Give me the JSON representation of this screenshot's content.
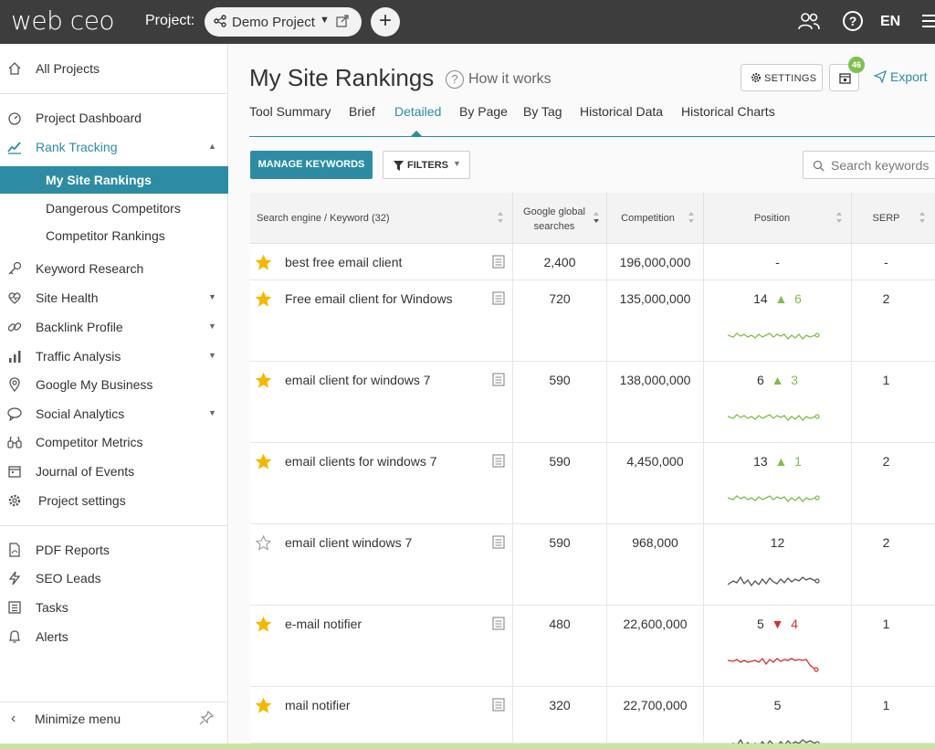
{
  "header": {
    "logo": "web ceo",
    "project_label": "Project:",
    "project_name": "Demo Project",
    "add_icon": "plus-icon",
    "lang": "EN"
  },
  "sidebar": {
    "items": [
      {
        "label": "All Projects",
        "icon": "home-icon"
      },
      {
        "label": "Project Dashboard",
        "icon": "dashboard-icon"
      },
      {
        "label": "Rank Tracking",
        "icon": "chart-line-icon"
      },
      {
        "label": "Keyword Research",
        "icon": "key-icon"
      },
      {
        "label": "Site Health",
        "icon": "heart-pulse-icon"
      },
      {
        "label": "Backlink Profile",
        "icon": "link-icon"
      },
      {
        "label": "Traffic Analysis",
        "icon": "bar-chart-icon"
      },
      {
        "label": "Google My Business",
        "icon": "map-pin-icon"
      },
      {
        "label": "Social Analytics",
        "icon": "speech-bubble-icon"
      },
      {
        "label": "Competitor Metrics",
        "icon": "binoculars-icon"
      },
      {
        "label": "Journal of Events",
        "icon": "calendar-icon"
      },
      {
        "label": "Project settings",
        "icon": "gear-icon"
      },
      {
        "label": "PDF Reports",
        "icon": "pdf-icon"
      },
      {
        "label": "SEO Leads",
        "icon": "lightning-icon"
      },
      {
        "label": "Tasks",
        "icon": "tasks-icon"
      },
      {
        "label": "Alerts",
        "icon": "bell-icon"
      }
    ],
    "subitems": [
      {
        "label": "My Site Rankings"
      },
      {
        "label": "Dangerous Competitors"
      },
      {
        "label": "Competitor Rankings"
      }
    ],
    "minimize_label": "Minimize menu"
  },
  "main": {
    "title": "My Site Rankings",
    "how_it_works": "How it works",
    "settings_label": "SETTINGS",
    "badge_count": "46",
    "export_label": "Export",
    "tabs": [
      {
        "label": "Tool Summary"
      },
      {
        "label": "Brief"
      },
      {
        "label": "Detailed"
      },
      {
        "label": "By Page"
      },
      {
        "label": "By Tag"
      },
      {
        "label": "Historical Data"
      },
      {
        "label": "Historical Charts"
      }
    ],
    "active_tab": "Detailed",
    "manage_keywords": "MANAGE KEYWORDS",
    "filters": "FILTERS",
    "search_placeholder": "Search keywords"
  },
  "table": {
    "headers": {
      "keyword": "Search engine / Keyword (32)",
      "searches_line1": "Google global",
      "searches_line2": "searches",
      "competition": "Competition",
      "position": "Position",
      "serp": "SERP"
    },
    "rows": [
      {
        "keyword": "best free email client",
        "starred": true,
        "searches": "2,400",
        "competition": "196,000,000",
        "position": "-",
        "change": "",
        "direction": "none",
        "serp": "-",
        "spark": null
      },
      {
        "keyword": "Free email client for Windows",
        "starred": true,
        "searches": "720",
        "competition": "135,000,000",
        "position": "14",
        "change": "6",
        "direction": "up",
        "serp": "2",
        "spark": "green"
      },
      {
        "keyword": "email client for windows 7",
        "starred": true,
        "searches": "590",
        "competition": "138,000,000",
        "position": "6",
        "change": "3",
        "direction": "up",
        "serp": "1",
        "spark": "green"
      },
      {
        "keyword": "email clients for windows 7",
        "starred": true,
        "searches": "590",
        "competition": "4,450,000",
        "position": "13",
        "change": "1",
        "direction": "up",
        "serp": "2",
        "spark": "green"
      },
      {
        "keyword": "email client windows 7",
        "starred": false,
        "searches": "590",
        "competition": "968,000",
        "position": "12",
        "change": "",
        "direction": "none",
        "serp": "2",
        "spark": "gray"
      },
      {
        "keyword": "e-mail notifier",
        "starred": true,
        "searches": "480",
        "competition": "22,600,000",
        "position": "5",
        "change": "4",
        "direction": "down",
        "serp": "1",
        "spark": "red"
      },
      {
        "keyword": "mail notifier",
        "starred": true,
        "searches": "320",
        "competition": "22,700,000",
        "position": "5",
        "change": "",
        "direction": "none",
        "serp": "1",
        "spark": "gray"
      }
    ]
  },
  "colors": {
    "accent": "#2d8ca3",
    "up": "#7fbf4d",
    "down": "#d0312d",
    "topbar": "#3d3d3d",
    "star": "#f5b800"
  }
}
